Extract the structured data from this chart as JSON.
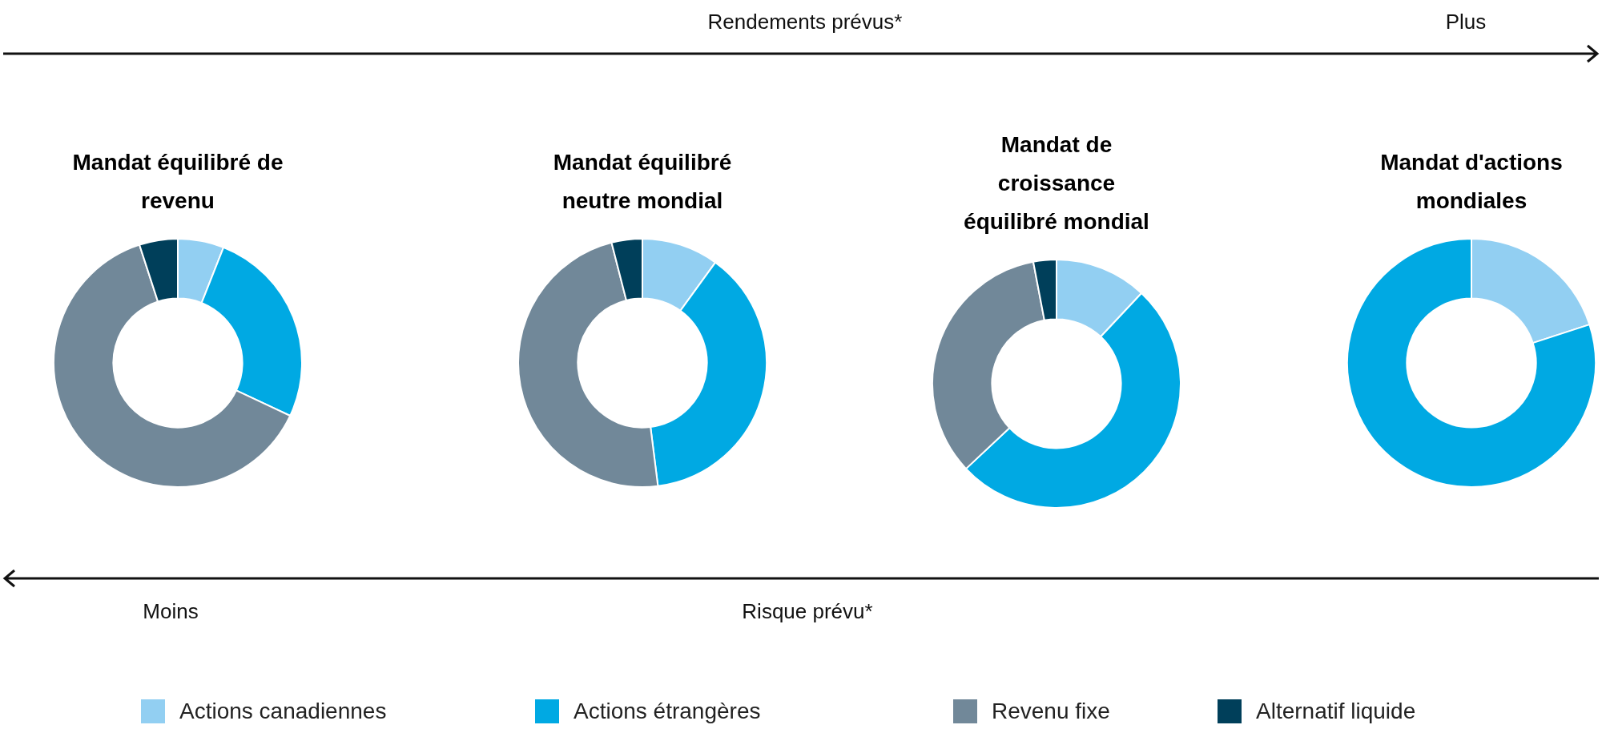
{
  "chart_data": [
    {
      "type": "donut",
      "title": "Mandat équilibré de revenu",
      "categories": [
        "Actions canadiennes",
        "Actions étrangères",
        "Revenu fixe",
        "Alternatif liquide"
      ],
      "values": [
        6,
        26,
        63,
        5
      ],
      "colors": [
        "#92cff2",
        "#00a9e3",
        "#718899",
        "#003f5a"
      ],
      "legend": "bottom"
    },
    {
      "type": "donut",
      "title": "Mandat équilibré neutre mondial",
      "categories": [
        null,
        null,
        null,
        null
      ],
      "values": [
        10,
        38,
        48,
        4
      ],
      "colors": [
        "#92cff2",
        "#00a9e3",
        "#718899",
        "#003f5a"
      ]
    },
    {
      "type": "donut",
      "title": "Mandat de croissance équilibré mondial",
      "categories": [
        null,
        null,
        null,
        null
      ],
      "values": [
        12,
        51,
        34,
        3
      ],
      "colors": [
        "#92cff2",
        "#00a9e3",
        "#718899",
        "#003f5a"
      ]
    },
    {
      "type": "donut",
      "title": "Mandat d'actions mondiales",
      "categories": [
        null,
        null
      ],
      "values": [
        20,
        80
      ],
      "colors": [
        "#92cff2",
        "#00a9e3"
      ]
    },
    {
      "type": "other",
      "annotations": [
        "Rendements prévus*",
        "Plus",
        "Moins",
        "Risque prévu*"
      ]
    }
  ]
}
